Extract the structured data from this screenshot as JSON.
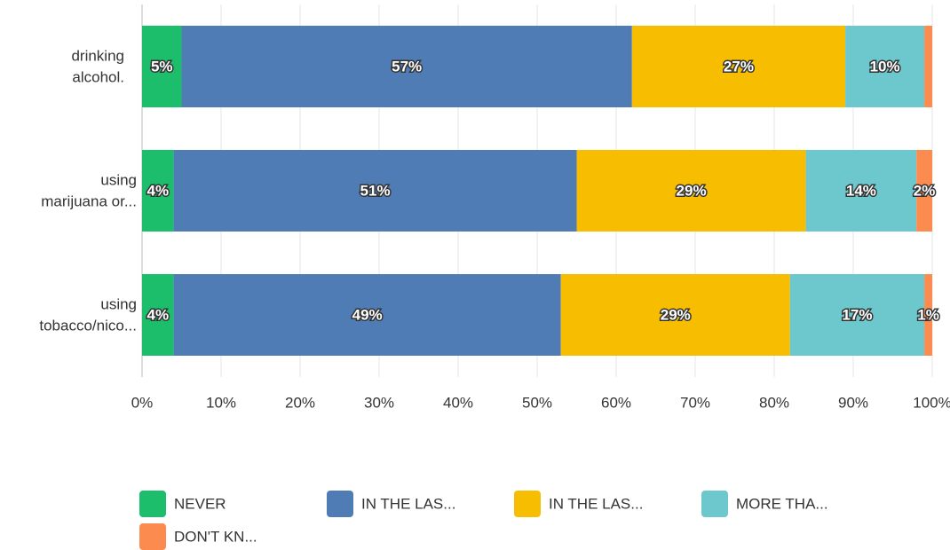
{
  "chart_data": {
    "type": "stacked-bar-horizontal",
    "categories": [
      [
        "drinking",
        "alcohol."
      ],
      [
        "using",
        "marijuana or..."
      ],
      [
        "using",
        "tobacco/nico..."
      ]
    ],
    "series": [
      {
        "name": "NEVER",
        "color": "#1cbe6c",
        "values": [
          5,
          4,
          4
        ],
        "value_labels": [
          "5%",
          "4%",
          "4%"
        ]
      },
      {
        "name": "IN THE LAS...",
        "color": "#507cb6",
        "values": [
          57,
          51,
          49
        ],
        "value_labels": [
          "57%",
          "51%",
          "49%"
        ]
      },
      {
        "name": "IN THE LAS...",
        "color": "#f7bd00",
        "values": [
          27,
          29,
          29
        ],
        "value_labels": [
          "27%",
          "29%",
          "29%"
        ]
      },
      {
        "name": "MORE THA...",
        "color": "#6cc8cd",
        "values": [
          10,
          14,
          17
        ],
        "value_labels": [
          "10%",
          "14%",
          "17%"
        ]
      },
      {
        "name": "DON'T KN...",
        "color": "#fb8b4e",
        "values": [
          1,
          2,
          1
        ],
        "value_labels": [
          null,
          "2%",
          "1%"
        ]
      }
    ],
    "xlim": [
      0,
      100
    ],
    "xticks": [
      {
        "value": 0,
        "label": "0%"
      },
      {
        "value": 10,
        "label": "10%"
      },
      {
        "value": 20,
        "label": "20%"
      },
      {
        "value": 30,
        "label": "30%"
      },
      {
        "value": 40,
        "label": "40%"
      },
      {
        "value": 50,
        "label": "50%"
      },
      {
        "value": 60,
        "label": "60%"
      },
      {
        "value": 70,
        "label": "70%"
      },
      {
        "value": 80,
        "label": "80%"
      },
      {
        "value": 90,
        "label": "90%"
      },
      {
        "value": 100,
        "label": "100%"
      }
    ],
    "grid": true,
    "legend": "bottom"
  }
}
